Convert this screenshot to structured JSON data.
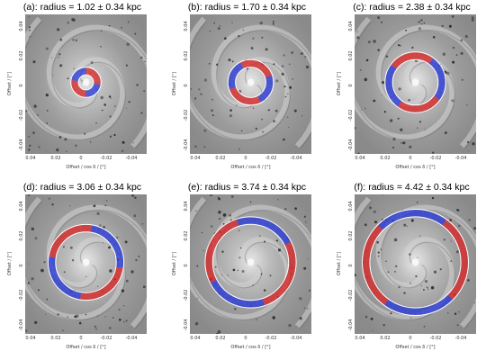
{
  "panels": [
    {
      "label": "(a):",
      "word": "radius",
      "value": "= 1.02 ± 0.34 kpc",
      "r": 1.02
    },
    {
      "label": "(b):",
      "word": "radius",
      "value": "= 1.70 ± 0.34 kpc",
      "r": 1.7
    },
    {
      "label": "(c):",
      "word": "radius",
      "value": "= 2.38 ± 0.34 kpc",
      "r": 2.38
    },
    {
      "label": "(d):",
      "word": "radius",
      "value": "= 3.06 ± 0.34 kpc",
      "r": 3.06
    },
    {
      "label": "(e):",
      "word": "radius",
      "value": "= 3.74 ± 0.34 kpc",
      "r": 3.74
    },
    {
      "label": "(f):",
      "word": "radius",
      "value": "= 4.42 ± 0.34 kpc",
      "r": 4.42
    }
  ],
  "axes": {
    "ylabel": "Offset / [°]",
    "xlabel": "Offset / cos δ / [°]",
    "yticks": [
      "0.04",
      "0.02",
      "0",
      "-0.02",
      "-0.04"
    ],
    "xticks": [
      "0.04",
      "0.02",
      "0",
      "-0.02",
      "-0.04"
    ]
  },
  "colors": {
    "ring_red": "#d62828",
    "ring_blue": "#2b3bd6",
    "circle": "#ffffff",
    "galaxy_bg": "#9a9a9a"
  }
}
